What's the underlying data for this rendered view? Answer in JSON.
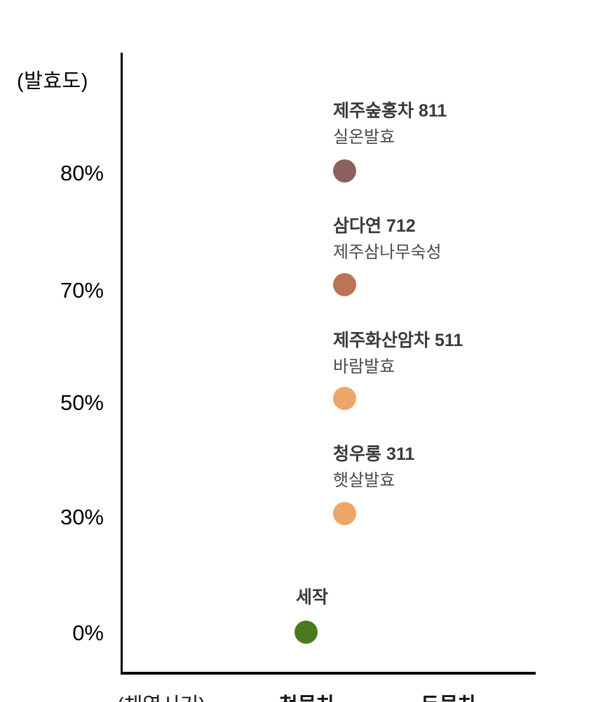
{
  "chart_data": {
    "type": "scatter",
    "title": "",
    "ylabel": "(발효도)",
    "xlabel": "(채엽시기)",
    "y_ticks": [
      "80%",
      "70%",
      "50%",
      "30%",
      "0%"
    ],
    "x_categories": [
      "첫물차",
      "두물차"
    ],
    "grid": false,
    "points": [
      {
        "name": "제주숲홍차 811",
        "process": "실온발효",
        "fermentation_pct": 80,
        "color": "#8b615e"
      },
      {
        "name": "삼다연 712",
        "process": "제주삼나무숙성",
        "fermentation_pct": 70,
        "color": "#bd7355"
      },
      {
        "name": "제주화산암차 511",
        "process": "바람발효",
        "fermentation_pct": 50,
        "color": "#eea56a"
      },
      {
        "name": "청우롱 311",
        "process": "햇살발효",
        "fermentation_pct": 30,
        "color": "#eea56a"
      },
      {
        "name": "세작",
        "process": "",
        "fermentation_pct": 0,
        "color": "#4b7a1d"
      }
    ],
    "axis_color": "#000000"
  }
}
